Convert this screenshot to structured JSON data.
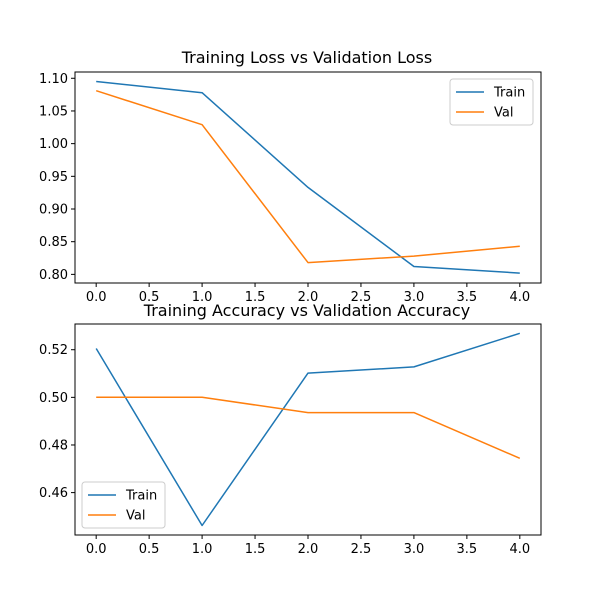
{
  "chart_data": [
    {
      "type": "line",
      "title": "Training Loss vs Validation Loss",
      "x": [
        0,
        1,
        2,
        3,
        4
      ],
      "xticks": [
        "0.0",
        "0.5",
        "1.0",
        "1.5",
        "2.0",
        "2.5",
        "3.0",
        "3.5",
        "4.0"
      ],
      "xtick_values": [
        0,
        0.5,
        1,
        1.5,
        2,
        2.5,
        3,
        3.5,
        4
      ],
      "xlim": [
        -0.2,
        4.2
      ],
      "yticks": [
        "0.80",
        "0.85",
        "0.90",
        "0.95",
        "1.00",
        "1.05",
        "1.10"
      ],
      "ytick_values": [
        0.8,
        0.85,
        0.9,
        0.95,
        1.0,
        1.05,
        1.1
      ],
      "ylim": [
        0.7868,
        1.1096
      ],
      "series": [
        {
          "name": "Train",
          "color": "#1f77b4",
          "values": [
            1.095,
            1.078,
            0.933,
            0.812,
            0.802
          ]
        },
        {
          "name": "Val",
          "color": "#ff7f0e",
          "values": [
            1.081,
            1.029,
            0.818,
            0.828,
            0.843
          ]
        }
      ],
      "legend": "top-right",
      "grid": false
    },
    {
      "type": "line",
      "title": "Training Accuracy vs Validation Accuracy",
      "x": [
        0,
        1,
        2,
        3,
        4
      ],
      "xticks": [
        "0.0",
        "0.5",
        "1.0",
        "1.5",
        "2.0",
        "2.5",
        "3.0",
        "3.5",
        "4.0"
      ],
      "xtick_values": [
        0,
        0.5,
        1,
        1.5,
        2,
        2.5,
        3,
        3.5,
        4
      ],
      "xlim": [
        -0.2,
        4.2
      ],
      "yticks": [
        "0.46",
        "0.48",
        "0.50",
        "0.52"
      ],
      "ytick_values": [
        0.46,
        0.48,
        0.5,
        0.52
      ],
      "ylim": [
        0.4422,
        0.5308
      ],
      "series": [
        {
          "name": "Train",
          "color": "#1f77b4",
          "values": [
            0.5205,
            0.4462,
            0.5102,
            0.5128,
            0.5269
          ]
        },
        {
          "name": "Val",
          "color": "#ff7f0e",
          "values": [
            0.5,
            0.5,
            0.4936,
            0.4936,
            0.4744
          ]
        }
      ],
      "legend": "bottom-left",
      "grid": false
    }
  ]
}
